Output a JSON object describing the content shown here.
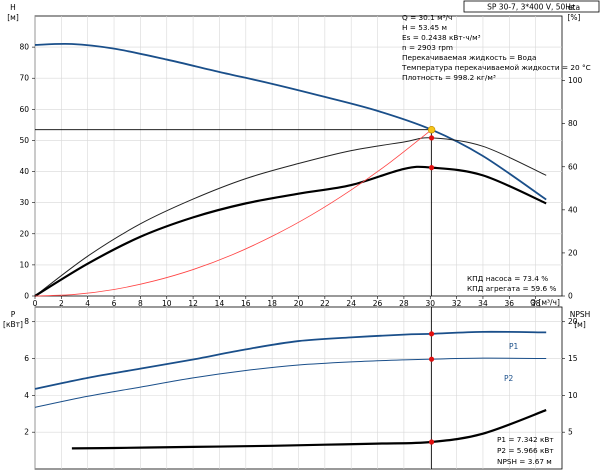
{
  "title": "SP 30-7, 3*400 V, 50Hz",
  "chart_data": [
    {
      "type": "line",
      "ylabel": "H",
      "yunit": "[м]",
      "y2label": "eta",
      "y2unit": "[%]",
      "xlabel": "Q [м³/ч]",
      "xlim": [
        0,
        40
      ],
      "xticks": [
        0,
        2,
        4,
        6,
        8,
        10,
        12,
        14,
        16,
        18,
        20,
        22,
        24,
        26,
        28,
        30,
        32,
        34,
        36,
        38
      ],
      "ylim": [
        0,
        90
      ],
      "yticks": [
        0,
        10,
        20,
        30,
        40,
        50,
        60,
        70,
        80
      ],
      "y2lim": [
        0,
        130
      ],
      "y2ticks": [
        0,
        20,
        40,
        60,
        80,
        100
      ],
      "grid": true,
      "series": [
        {
          "key": "H",
          "axis": "left",
          "color": "#1a4f8a",
          "width": 1.8,
          "x": [
            0,
            2.8,
            6,
            10,
            14,
            18,
            22,
            26,
            30.1,
            34,
            38.8
          ],
          "y": [
            80.7,
            81.0,
            79.5,
            76.0,
            72.0,
            68.2,
            64.0,
            59.5,
            53.45,
            45.0,
            31.0
          ]
        },
        {
          "key": "pump-eta",
          "axis": "right",
          "color": "#222222",
          "width": 1.0,
          "x": [
            0,
            4,
            8,
            12,
            16,
            20,
            24,
            28,
            30.1,
            34,
            38.8
          ],
          "y": [
            0,
            18.5,
            33.5,
            45.0,
            54.5,
            61.5,
            67.5,
            71.5,
            73.4,
            69.5,
            56.0
          ]
        },
        {
          "key": "unit-eta",
          "axis": "right",
          "color": "#000000",
          "width": 2.2,
          "x": [
            0,
            4,
            8,
            12,
            16,
            20,
            24,
            28,
            30.1,
            34,
            38.8
          ],
          "y": [
            0,
            15.0,
            27.5,
            36.5,
            43.0,
            47.5,
            51.5,
            59.0,
            59.6,
            56.0,
            43.0
          ]
        },
        {
          "key": "system-curve",
          "axis": "left",
          "color": "#ff4444",
          "width": 0.8,
          "x": [
            0,
            3,
            6,
            9,
            12,
            15,
            18,
            21,
            24,
            27,
            30.1
          ],
          "y": [
            0,
            0.5,
            2.1,
            4.8,
            8.5,
            13.3,
            19.2,
            26.1,
            34.1,
            43.1,
            53.45
          ]
        }
      ],
      "duty_point": {
        "x": 30.1,
        "y": 53.45
      },
      "markers": [
        {
          "x": 30.1,
          "y": 73.4,
          "axis": "right"
        },
        {
          "x": 30.1,
          "y": 59.6,
          "axis": "right"
        }
      ],
      "annotations": [
        "Q = 30.1 м³/ч",
        "H = 53.45 м",
        "Es = 0.2438 кВт-ч/м³",
        "n = 2903 rpm",
        "Перекачиваемая жидкость = Вода",
        "Температура перекачиваемой жидкости = 20 °C",
        "Плотность = 998.2 кг/м³"
      ],
      "efficiency_labels": [
        "КПД насоса = 73.4 %",
        "КПД агрегата = 59.6 %"
      ]
    },
    {
      "type": "line",
      "ylabel": "P",
      "yunit": "[кВт]",
      "y2label": "NPSH",
      "y2unit": "[м]",
      "xlim": [
        0,
        40
      ],
      "ylim": [
        0,
        8.8
      ],
      "yticks": [
        2,
        4,
        6,
        8
      ],
      "y2lim": [
        0,
        22
      ],
      "y2ticks": [
        5,
        10,
        15,
        20
      ],
      "grid": true,
      "series": [
        {
          "name": "P1",
          "key": "P1",
          "axis": "left",
          "color": "#1a4f8a",
          "width": 1.8,
          "x": [
            0,
            4,
            8,
            12,
            16,
            20,
            24,
            28,
            30.1,
            34,
            38.8
          ],
          "y": [
            4.35,
            4.95,
            5.45,
            5.95,
            6.5,
            6.95,
            7.15,
            7.3,
            7.342,
            7.45,
            7.42
          ]
        },
        {
          "name": "P2",
          "key": "P2",
          "axis": "left",
          "color": "#1a4f8a",
          "width": 1.0,
          "x": [
            0,
            4,
            8,
            12,
            16,
            20,
            24,
            28,
            30.1,
            34,
            38.8
          ],
          "y": [
            3.35,
            3.95,
            4.45,
            4.95,
            5.35,
            5.65,
            5.82,
            5.93,
            5.966,
            6.02,
            6.0
          ]
        },
        {
          "key": "NPSH",
          "axis": "right",
          "color": "#000000",
          "width": 2.2,
          "x": [
            2.8,
            6,
            10,
            14,
            18,
            22,
            26,
            30.1,
            34,
            38.8
          ],
          "y": [
            2.8,
            2.85,
            2.95,
            3.05,
            3.15,
            3.3,
            3.45,
            3.67,
            4.8,
            8.0
          ]
        }
      ],
      "markers": [
        {
          "x": 30.1,
          "y": 7.342,
          "axis": "left"
        },
        {
          "x": 30.1,
          "y": 5.966,
          "axis": "left"
        },
        {
          "x": 30.1,
          "y": 3.67,
          "axis": "right"
        }
      ],
      "values_box": [
        "P1 = 7.342 кВт",
        "P2 = 5.966 кВт",
        "NPSH = 3.67 м"
      ]
    }
  ]
}
